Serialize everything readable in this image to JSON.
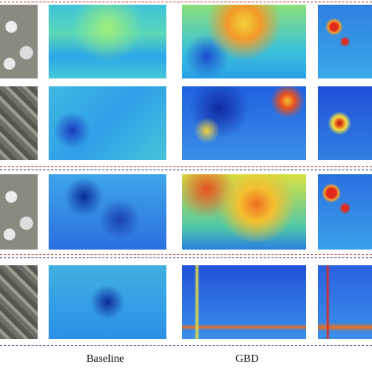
{
  "column_labels": [
    "Baseline",
    "GBD"
  ]
}
